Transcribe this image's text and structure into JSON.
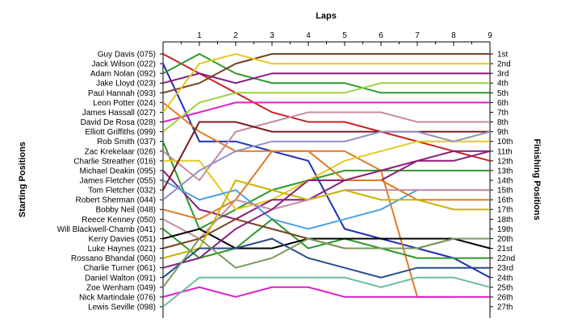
{
  "chart_data": {
    "type": "line",
    "title": "Laps",
    "ylabel_left": "Starting Positions",
    "ylabel_right": "Finishing Positions",
    "x": [
      0,
      1,
      2,
      3,
      4,
      5,
      6,
      7,
      8,
      9
    ],
    "x_tick_labels": [
      "1",
      "2",
      "3",
      "4",
      "5",
      "6",
      "7",
      "8",
      "9"
    ],
    "finishing_labels": [
      "1st",
      "2nd",
      "3rd",
      "4th",
      "5th",
      "6th",
      "7th",
      "8th",
      "9th",
      "10th",
      "11th",
      "12th",
      "13th",
      "14th",
      "15th",
      "16th",
      "17th",
      "18th",
      "19th",
      "20th",
      "21st",
      "22nd",
      "23rd",
      "24th",
      "25th",
      "26th",
      "27th"
    ],
    "y_range": [
      1,
      27
    ],
    "grid": false,
    "series": [
      {
        "name": "Guy Davis (075)",
        "color": "#cc2020",
        "positions": [
          1,
          3,
          5,
          7,
          8,
          8,
          9,
          10,
          11,
          12
        ]
      },
      {
        "name": "Jack Wilson (022)",
        "color": "#1a2fb8",
        "positions": [
          2,
          10,
          10,
          11,
          12,
          19,
          20,
          21,
          22,
          24
        ]
      },
      {
        "name": "Adam Nolan (092)",
        "color": "#2a9a2a",
        "positions": [
          3,
          1,
          3,
          4,
          4,
          4,
          5,
          5,
          5,
          5
        ]
      },
      {
        "name": "Jake Lloyd (023)",
        "color": "#8a1c7c",
        "positions": [
          4,
          3,
          4,
          3,
          3,
          3,
          3,
          3,
          3,
          3
        ]
      },
      {
        "name": "Paul Hannah (093)",
        "color": "#7a4020",
        "positions": [
          5,
          4,
          2,
          1,
          1,
          1,
          1,
          1,
          1,
          1
        ]
      },
      {
        "name": "Leon Potter (024)",
        "color": "#e07a20",
        "positions": [
          6,
          9,
          11,
          11,
          11,
          11,
          13,
          26,
          26,
          null
        ]
      },
      {
        "name": "James Hassall (027)",
        "color": "#e6c81e",
        "positions": [
          7,
          2,
          1,
          2,
          2,
          2,
          2,
          2,
          2,
          2
        ]
      },
      {
        "name": "David De Rosa (028)",
        "color": "#e020c8",
        "positions": [
          8,
          7,
          6,
          6,
          6,
          6,
          6,
          6,
          6,
          6
        ]
      },
      {
        "name": "Elliott Griffiths (099)",
        "color": "#9ad23a",
        "positions": [
          9,
          6,
          5,
          5,
          5,
          5,
          4,
          4,
          4,
          4
        ]
      },
      {
        "name": "Rob Smith (037)",
        "color": "#2a9a2a",
        "positions": [
          10,
          19,
          17,
          15,
          14,
          13,
          13,
          13,
          13,
          13
        ]
      },
      {
        "name": "Zac Krekelaar (026)",
        "color": "#c78aa0",
        "positions": [
          11,
          14,
          9,
          8,
          7,
          7,
          7,
          8,
          8,
          8
        ]
      },
      {
        "name": "Charlie Streather (016)",
        "color": "#e6c81e",
        "positions": [
          12,
          12,
          17,
          16,
          14,
          12,
          11,
          10,
          10,
          10
        ]
      },
      {
        "name": "Michael Deakin (095)",
        "color": "#8a1c7c",
        "positions": [
          13,
          17,
          18,
          16,
          16,
          14,
          14,
          12,
          12,
          11
        ]
      },
      {
        "name": "James Fletcher (055)",
        "color": "#4aa0e0",
        "positions": [
          14,
          16,
          15,
          18,
          19,
          18,
          17,
          15,
          15,
          15
        ]
      },
      {
        "name": "Tom Fletcher (032)",
        "color": "#7a1c1c",
        "positions": [
          15,
          8,
          8,
          9,
          9,
          9,
          9,
          9,
          9,
          9
        ]
      },
      {
        "name": "Robert Sherman (044)",
        "color": "#9090c8",
        "positions": [
          16,
          13,
          11,
          10,
          10,
          10,
          9,
          9,
          10,
          9
        ]
      },
      {
        "name": "Bobby Neil (048)",
        "color": "#e07a20",
        "positions": [
          17,
          18,
          16,
          11,
          11,
          14,
          14,
          16,
          16,
          16
        ]
      },
      {
        "name": "Reece Kenney (050)",
        "color": "#c78aa0",
        "positions": [
          18,
          20,
          16,
          17,
          16,
          15,
          15,
          15,
          15,
          15
        ]
      },
      {
        "name": "Will Blackwell-Chamb (041)",
        "color": "#2a9a2a",
        "positions": [
          19,
          22,
          21,
          18,
          21,
          20,
          21,
          22,
          22,
          22
        ]
      },
      {
        "name": "Kerry Davies (051)",
        "color": "#000000",
        "positions": [
          20,
          19,
          21,
          21,
          20,
          20,
          20,
          20,
          20,
          21
        ]
      },
      {
        "name": "Luke Haynes (021)",
        "color": "#7a4020",
        "positions": [
          21,
          20,
          18,
          19,
          20,
          21,
          21,
          21,
          20,
          20
        ]
      },
      {
        "name": "Rossano Bhandal (060)",
        "color": "#c8b400",
        "positions": [
          22,
          21,
          14,
          15,
          16,
          15,
          16,
          16,
          17,
          17
        ]
      },
      {
        "name": "Charlie Turner (061)",
        "color": "#8a1c7c",
        "positions": [
          23,
          22,
          19,
          17,
          14,
          14,
          13,
          12,
          11,
          11
        ]
      },
      {
        "name": "Daniel Walton (091)",
        "color": "#2a4a8a",
        "positions": [
          24,
          21,
          21,
          20,
          22,
          23,
          24,
          23,
          23,
          23
        ]
      },
      {
        "name": "Zoe Wenham (049)",
        "color": "#7a9a5a",
        "positions": [
          25,
          20,
          23,
          22,
          20,
          21,
          21,
          21,
          20,
          20
        ]
      },
      {
        "name": "Nick Martindale (076)",
        "color": "#e020c8",
        "positions": [
          26,
          25,
          26,
          25,
          25,
          26,
          26,
          26,
          26,
          26
        ]
      },
      {
        "name": "Lewis Seville (098)",
        "color": "#6ac0a0",
        "positions": [
          27,
          24,
          24,
          24,
          24,
          24,
          25,
          24,
          24,
          25
        ]
      }
    ]
  }
}
